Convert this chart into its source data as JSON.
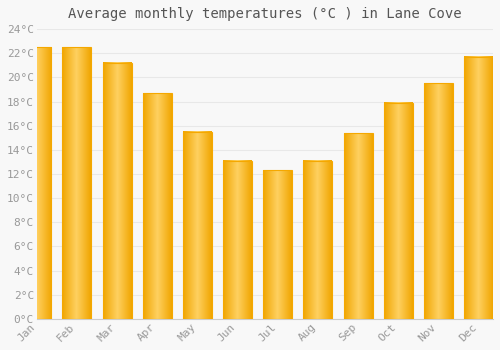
{
  "title": "Average monthly temperatures (°C ) in Lane Cove",
  "months": [
    "Jan",
    "Feb",
    "Mar",
    "Apr",
    "May",
    "Jun",
    "Jul",
    "Aug",
    "Sep",
    "Oct",
    "Nov",
    "Dec"
  ],
  "values": [
    22.5,
    22.5,
    21.2,
    18.7,
    15.5,
    13.1,
    12.3,
    13.1,
    15.4,
    17.9,
    19.5,
    21.7
  ],
  "bar_color_center": "#FFD060",
  "bar_color_edge": "#F5A800",
  "ylim": [
    0,
    24
  ],
  "yticks": [
    0,
    2,
    4,
    6,
    8,
    10,
    12,
    14,
    16,
    18,
    20,
    22,
    24
  ],
  "ytick_labels": [
    "0°C",
    "2°C",
    "4°C",
    "6°C",
    "8°C",
    "10°C",
    "12°C",
    "14°C",
    "16°C",
    "18°C",
    "20°C",
    "22°C",
    "24°C"
  ],
  "background_color": "#f8f8f8",
  "plot_bg_color": "#f8f8f8",
  "grid_color": "#e8e8e8",
  "title_fontsize": 10,
  "tick_fontsize": 8,
  "tick_color": "#999999",
  "title_color": "#555555"
}
